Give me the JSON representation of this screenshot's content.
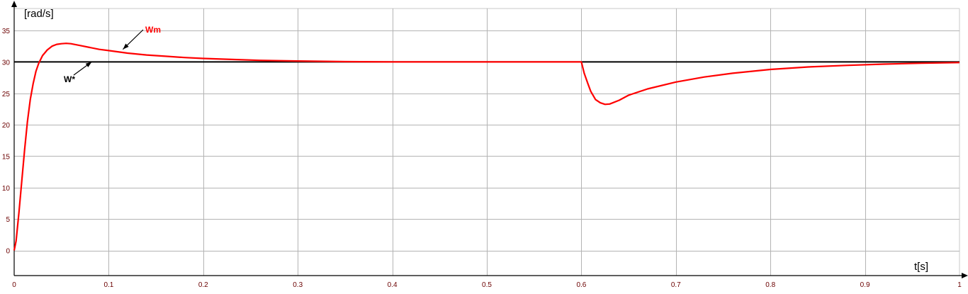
{
  "chart_data": {
    "type": "line",
    "title": "",
    "xlabel": "t[s]",
    "ylabel": "[rad/s]",
    "xlim": [
      0,
      1
    ],
    "ylim": [
      -4,
      38.5
    ],
    "xticks": [
      0,
      0.1,
      0.2,
      0.3,
      0.4,
      0.5,
      0.6,
      0.7,
      0.8,
      0.9,
      1
    ],
    "xtick_labels": [
      "0",
      "0.1",
      "0.2",
      "0.3",
      "0.4",
      "0.5",
      "0.6",
      "0.7",
      "0.8",
      "0.9",
      "1"
    ],
    "yticks": [
      0,
      5,
      10,
      15,
      20,
      25,
      30,
      35
    ],
    "ytick_labels": [
      "0",
      "5",
      "10",
      "15",
      "20",
      "25",
      "30",
      "35"
    ],
    "grid": true,
    "annotations": [
      {
        "text": "Wm",
        "series": "Wm",
        "color": "#ff0000",
        "point": [
          0.115,
          32.0
        ]
      },
      {
        "text": "W*",
        "series": "W*",
        "color": "#000000",
        "point": [
          0.082,
          30.0
        ]
      }
    ],
    "series": [
      {
        "name": "W*",
        "color": "#000000",
        "x": [
          0,
          1
        ],
        "y": [
          30,
          30
        ]
      },
      {
        "name": "Wm",
        "color": "#ff0000",
        "x": [
          0,
          0.002,
          0.005,
          0.008,
          0.011,
          0.014,
          0.017,
          0.02,
          0.023,
          0.026,
          0.03,
          0.035,
          0.04,
          0.045,
          0.05,
          0.055,
          0.06,
          0.07,
          0.08,
          0.09,
          0.1,
          0.12,
          0.14,
          0.16,
          0.18,
          0.2,
          0.23,
          0.26,
          0.3,
          0.35,
          0.4,
          0.45,
          0.5,
          0.55,
          0.6,
          0.603,
          0.607,
          0.61,
          0.615,
          0.62,
          0.625,
          0.63,
          0.64,
          0.65,
          0.67,
          0.7,
          0.73,
          0.76,
          0.8,
          0.84,
          0.88,
          0.92,
          0.96,
          1.0
        ],
        "y": [
          0,
          1.5,
          6.0,
          11.0,
          16.0,
          20.5,
          24.0,
          26.5,
          28.5,
          29.8,
          31.0,
          31.9,
          32.5,
          32.8,
          32.9,
          32.95,
          32.9,
          32.6,
          32.3,
          32.0,
          31.8,
          31.4,
          31.1,
          30.9,
          30.7,
          30.55,
          30.4,
          30.25,
          30.15,
          30.05,
          30.0,
          30.0,
          30.0,
          30.0,
          30.0,
          28.2,
          26.5,
          25.3,
          24.0,
          23.5,
          23.25,
          23.3,
          23.9,
          24.7,
          25.7,
          26.8,
          27.6,
          28.2,
          28.8,
          29.2,
          29.45,
          29.65,
          29.8,
          29.9
        ]
      }
    ]
  }
}
